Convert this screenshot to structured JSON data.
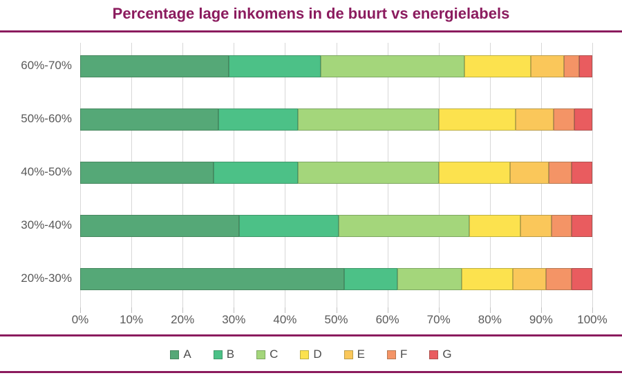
{
  "title": "Percentage lage inkomens in de buurt vs energielabels",
  "theme": {
    "accent": "#8B1B5E",
    "axis_text": "#595959",
    "gridline": "#D7D7D7",
    "background": "#FFFFFF"
  },
  "chart_data": {
    "type": "bar",
    "orientation": "horizontal-stacked",
    "title": "Percentage lage inkomens in de buurt vs energielabels",
    "xlabel": "",
    "ylabel": "",
    "xlim": [
      0,
      100
    ],
    "grid": true,
    "legend_position": "bottom",
    "categories": [
      "60%-70%",
      "50%-60%",
      "40%-50%",
      "30%-40%",
      "20%-30%"
    ],
    "x_ticks": [
      "0%",
      "10%",
      "20%",
      "30%",
      "40%",
      "50%",
      "60%",
      "70%",
      "80%",
      "90%",
      "100%"
    ],
    "series": [
      {
        "name": "A",
        "color": "#55A877",
        "values": [
          29,
          27,
          26,
          31,
          51.5
        ]
      },
      {
        "name": "B",
        "color": "#4CC187",
        "values": [
          18,
          15.5,
          16.5,
          19.5,
          10.5
        ]
      },
      {
        "name": "C",
        "color": "#A4D67B",
        "values": [
          28,
          27.5,
          27.5,
          25.5,
          12.5
        ]
      },
      {
        "name": "D",
        "color": "#FCE24E",
        "values": [
          13,
          15,
          14,
          10,
          10
        ]
      },
      {
        "name": "E",
        "color": "#FAC75A",
        "values": [
          6.5,
          7.5,
          7.5,
          6,
          6.5
        ]
      },
      {
        "name": "F",
        "color": "#F49466",
        "values": [
          3,
          4,
          4.5,
          4,
          5
        ]
      },
      {
        "name": "G",
        "color": "#E95C5F",
        "values": [
          2.5,
          3.5,
          4,
          4,
          4
        ]
      }
    ]
  }
}
